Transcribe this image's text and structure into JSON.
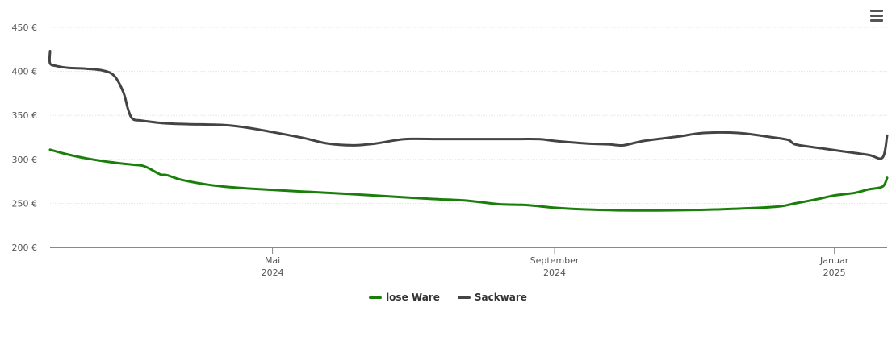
{
  "menu": {
    "icon": "hamburger-menu-icon"
  },
  "chart_data": {
    "type": "line",
    "title": "",
    "xlabel": "",
    "ylabel": "",
    "ylim": [
      200,
      450
    ],
    "y_ticks": [
      200,
      250,
      300,
      350,
      400,
      450
    ],
    "y_tick_suffix": " €",
    "x_ticks": [
      {
        "x": "2024-05-01",
        "line1": "Mai",
        "line2": "2024"
      },
      {
        "x": "2024-09-01",
        "line1": "September",
        "line2": "2024"
      },
      {
        "x": "2025-01-01",
        "line1": "Januar",
        "line2": "2025"
      }
    ],
    "xlim": [
      "2024-01-25",
      "2025-01-24"
    ],
    "grid": true,
    "legend_position": "bottom-center",
    "series": [
      {
        "name": "lose Ware",
        "color": "#1a7f0a",
        "points": [
          [
            "2024-01-25",
            311
          ],
          [
            "2024-02-01",
            306
          ],
          [
            "2024-02-10",
            301
          ],
          [
            "2024-02-20",
            297
          ],
          [
            "2024-03-01",
            294
          ],
          [
            "2024-03-05",
            293
          ],
          [
            "2024-03-08",
            290
          ],
          [
            "2024-03-13",
            283
          ],
          [
            "2024-03-16",
            282
          ],
          [
            "2024-03-22",
            277
          ],
          [
            "2024-04-01",
            272
          ],
          [
            "2024-04-10",
            269
          ],
          [
            "2024-04-20",
            267
          ],
          [
            "2024-05-10",
            264
          ],
          [
            "2024-06-01",
            261
          ],
          [
            "2024-06-20",
            258
          ],
          [
            "2024-07-10",
            255
          ],
          [
            "2024-07-25",
            253
          ],
          [
            "2024-08-08",
            249
          ],
          [
            "2024-08-20",
            248
          ],
          [
            "2024-09-01",
            245
          ],
          [
            "2024-09-15",
            243
          ],
          [
            "2024-10-01",
            242
          ],
          [
            "2024-10-20",
            242
          ],
          [
            "2024-11-10",
            243
          ],
          [
            "2024-12-06",
            246
          ],
          [
            "2024-12-15",
            250
          ],
          [
            "2024-12-25",
            255
          ],
          [
            "2025-01-01",
            259
          ],
          [
            "2025-01-10",
            262
          ],
          [
            "2025-01-16",
            266
          ],
          [
            "2025-01-22",
            269
          ],
          [
            "2025-01-24",
            279
          ]
        ]
      },
      {
        "name": "Sackware",
        "color": "#444444",
        "points": [
          [
            "2024-01-25",
            423
          ],
          [
            "2024-01-25",
            409
          ],
          [
            "2024-01-28",
            406
          ],
          [
            "2024-02-02",
            404
          ],
          [
            "2024-02-10",
            403
          ],
          [
            "2024-02-17",
            401
          ],
          [
            "2024-02-22",
            395
          ],
          [
            "2024-02-26",
            376
          ],
          [
            "2024-02-28",
            357
          ],
          [
            "2024-03-01",
            346
          ],
          [
            "2024-03-05",
            344
          ],
          [
            "2024-03-15",
            341
          ],
          [
            "2024-03-25",
            340
          ],
          [
            "2024-04-10",
            339
          ],
          [
            "2024-04-20",
            336
          ],
          [
            "2024-05-01",
            331
          ],
          [
            "2024-05-15",
            324
          ],
          [
            "2024-05-25",
            318
          ],
          [
            "2024-06-05",
            316
          ],
          [
            "2024-06-15",
            318
          ],
          [
            "2024-06-28",
            323
          ],
          [
            "2024-07-15",
            323
          ],
          [
            "2024-08-10",
            323
          ],
          [
            "2024-08-25",
            323
          ],
          [
            "2024-09-01",
            321
          ],
          [
            "2024-09-15",
            318
          ],
          [
            "2024-09-25",
            317
          ],
          [
            "2024-10-01",
            316
          ],
          [
            "2024-10-10",
            321
          ],
          [
            "2024-10-25",
            326
          ],
          [
            "2024-11-05",
            330
          ],
          [
            "2024-11-20",
            330
          ],
          [
            "2024-12-05",
            325
          ],
          [
            "2024-12-12",
            322
          ],
          [
            "2024-12-15",
            317
          ],
          [
            "2024-12-25",
            313
          ],
          [
            "2025-01-05",
            309
          ],
          [
            "2025-01-16",
            305
          ],
          [
            "2025-01-22",
            302
          ],
          [
            "2025-01-24",
            327
          ]
        ]
      }
    ]
  }
}
